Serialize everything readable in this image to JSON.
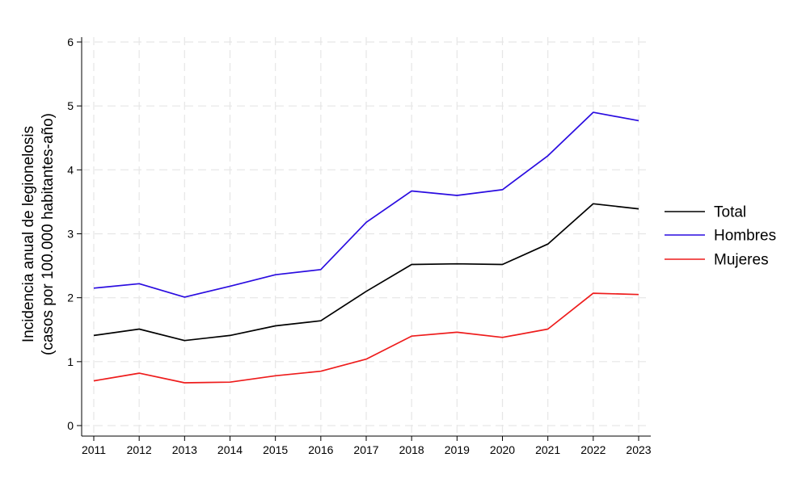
{
  "chart_data": {
    "type": "line",
    "title": "",
    "xlabel": "",
    "ylabel_lines": [
      "Incidencia anual de legionelosis",
      "(casos por 100.000 habitantes-año)"
    ],
    "x": [
      "2011",
      "2012",
      "2013",
      "2014",
      "2015",
      "2016",
      "2017",
      "2018",
      "2019",
      "2020",
      "2021",
      "2022",
      "2023"
    ],
    "y_ticks": [
      "0",
      "1",
      "2",
      "3",
      "4",
      "5",
      "6"
    ],
    "ylim": [
      0,
      6
    ],
    "grid": true,
    "legend_position": "right",
    "series": [
      {
        "name": "Total",
        "color": "#000000",
        "values": [
          1.41,
          1.51,
          1.33,
          1.41,
          1.56,
          1.64,
          2.1,
          2.52,
          2.53,
          2.52,
          2.84,
          3.47,
          3.39
        ]
      },
      {
        "name": "Hombres",
        "color": "#2a0ce0",
        "values": [
          2.15,
          2.22,
          2.01,
          2.18,
          2.36,
          2.44,
          3.18,
          3.67,
          3.6,
          3.69,
          4.22,
          4.9,
          4.77
        ]
      },
      {
        "name": "Mujeres",
        "color": "#ee1c1c",
        "values": [
          0.7,
          0.82,
          0.67,
          0.68,
          0.78,
          0.85,
          1.04,
          1.4,
          1.46,
          1.38,
          1.51,
          2.07,
          2.05
        ]
      }
    ]
  }
}
